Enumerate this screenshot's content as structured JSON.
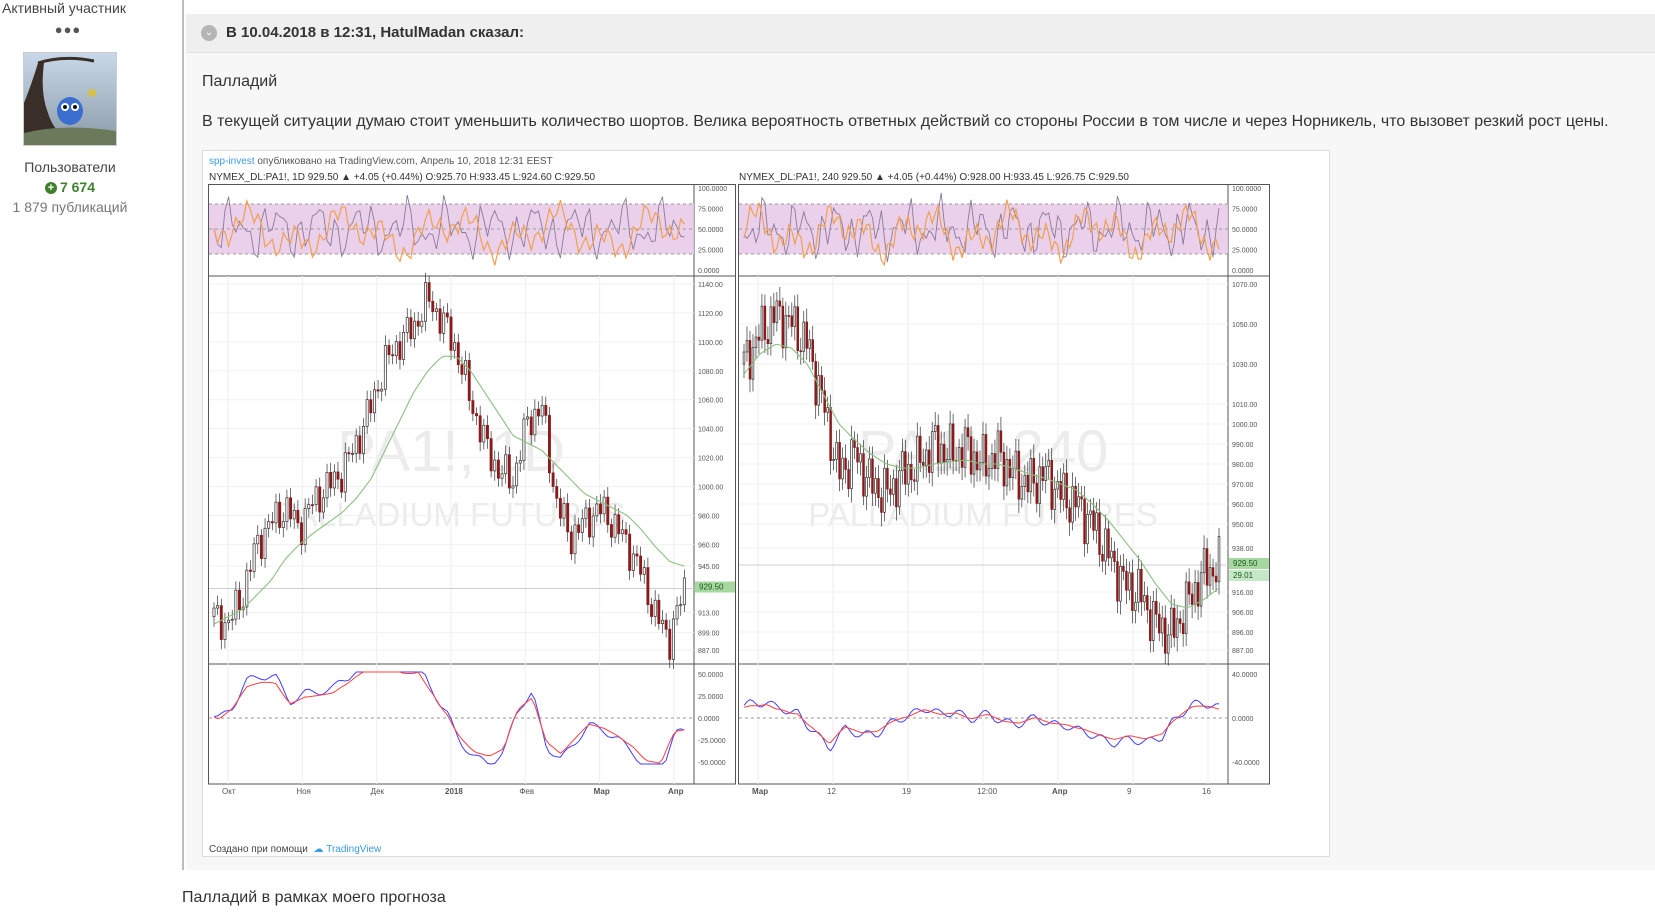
{
  "author": {
    "rank": "Активный участник",
    "rank_dots": "●●●",
    "group": "Пользователи",
    "reputation": "7 674",
    "posts": "1 879 публикаций"
  },
  "quote": {
    "cite": "В 10.04.2018 в 12:31, HatulMadan сказал:",
    "title": "Палладий",
    "text": "В текущей ситуации думаю стоит уменьшить количество шортов. Велика вероятность ответных действий со стороны России в том числе и через Норникель, что вызовет резкий рост цены."
  },
  "image": {
    "publisher": "spp-invest",
    "published_text": " опубликовано на TradingView.com, Апрель 10, 2018 12:31 EEST",
    "made_with": "Создано при помощи",
    "tv_brand": "TradingView",
    "colors": {
      "candle_up": "#2e2e2e",
      "candle_down": "#8b1a1a",
      "ma": "#8cbf80",
      "rsi": "#8a7a9a",
      "rsi_slow": "#f0a050",
      "rsi_band": "#e8c8e8",
      "macd": "#4040ff",
      "signal": "#ff4040"
    }
  },
  "chart_data": [
    {
      "type": "line",
      "title": "NYMEX_DL:PA1!, 1D",
      "legend_text": "NYMEX_DL:PA1!, 1D  929.50 ▲ +4.05 (+0.44%) O:925.70 H:933.45 L:924.60 C:929.50",
      "watermark_1": "PA1!, 1D",
      "watermark_2": "PALLADIUM FUTURES",
      "x_ticks": [
        "Окт",
        "Ноя",
        "Дек",
        "2018",
        "Фев",
        "Мар",
        "Апр"
      ],
      "price_ticks": [
        "1140.00",
        "1120.00",
        "1100.00",
        "1080.00",
        "1060.00",
        "1040.00",
        "1020.00",
        "1000.00",
        "980.00",
        "960.00",
        "945.00",
        "929.50",
        "913.00",
        "899.00",
        "887.00"
      ],
      "price_axis": [
        887,
        1140
      ],
      "last_price": "929.50",
      "rsi_ticks": [
        "100.0000",
        "75.0000",
        "50.0000",
        "25.0000",
        "0.0000"
      ],
      "macd_ticks": [
        "50.0000",
        "25.0000",
        "0.0000",
        "-25.0000",
        "-50.0000"
      ],
      "price_series": [
        910,
        905,
        925,
        960,
        975,
        985,
        972,
        990,
        1000,
        1010,
        1030,
        1055,
        1085,
        1100,
        1110,
        1130,
        1115,
        1095,
        1060,
        1030,
        1010,
        1005,
        1045,
        1055,
        990,
        965,
        975,
        985,
        975,
        960,
        940,
        910,
        895,
        929.5
      ],
      "ma_series": [
        905,
        910,
        915,
        925,
        935,
        950,
        960,
        968,
        975,
        982,
        992,
        1005,
        1025,
        1045,
        1065,
        1080,
        1090,
        1090,
        1080,
        1065,
        1050,
        1035,
        1030,
        1025,
        1015,
        1005,
        995,
        990,
        985,
        980,
        970,
        958,
        948,
        945
      ]
    },
    {
      "type": "line",
      "title": "NYMEX_DL:PA1!, 240",
      "legend_text": "NYMEX_DL:PA1!, 240  929.50 ▲ +4.05 (+0.44%) O:928.00 H:933.45 L:926.75 C:929.50",
      "watermark_1": "PA1!, 240",
      "watermark_2": "PALLADIUM FUTURES",
      "x_ticks": [
        "Мар",
        "12",
        "19",
        "12:00",
        "Апр",
        "9",
        "16"
      ],
      "price_ticks": [
        "1070.00",
        "1050.00",
        "1030.00",
        "1010.00",
        "1000.00",
        "990.00",
        "980.00",
        "970.00",
        "960.00",
        "950.00",
        "938.00",
        "929.50",
        "29.01",
        "916.00",
        "906.00",
        "896.00",
        "887.00"
      ],
      "price_axis": [
        887,
        1070
      ],
      "last_price": "929.50",
      "countdown": "29.01",
      "rsi_ticks": [
        "100.0000",
        "75.0000",
        "50.0000",
        "25.0000",
        "0.0000"
      ],
      "macd_ticks": [
        "40.0000",
        "0.0000",
        "-40.0000"
      ],
      "price_series": [
        1030,
        1045,
        1055,
        1050,
        1040,
        1010,
        975,
        985,
        970,
        965,
        975,
        980,
        990,
        985,
        988,
        980,
        985,
        975,
        970,
        975,
        965,
        960,
        950,
        935,
        920,
        915,
        900,
        895,
        910,
        925,
        929.5
      ],
      "ma_series": [
        1025,
        1035,
        1040,
        1038,
        1030,
        1015,
        1000,
        992,
        985,
        980,
        978,
        978,
        980,
        981,
        982,
        980,
        980,
        978,
        975,
        973,
        970,
        967,
        960,
        952,
        942,
        932,
        920,
        910,
        908,
        912,
        918
      ]
    }
  ],
  "footer_text": "Палладий в рамках моего прогноза"
}
